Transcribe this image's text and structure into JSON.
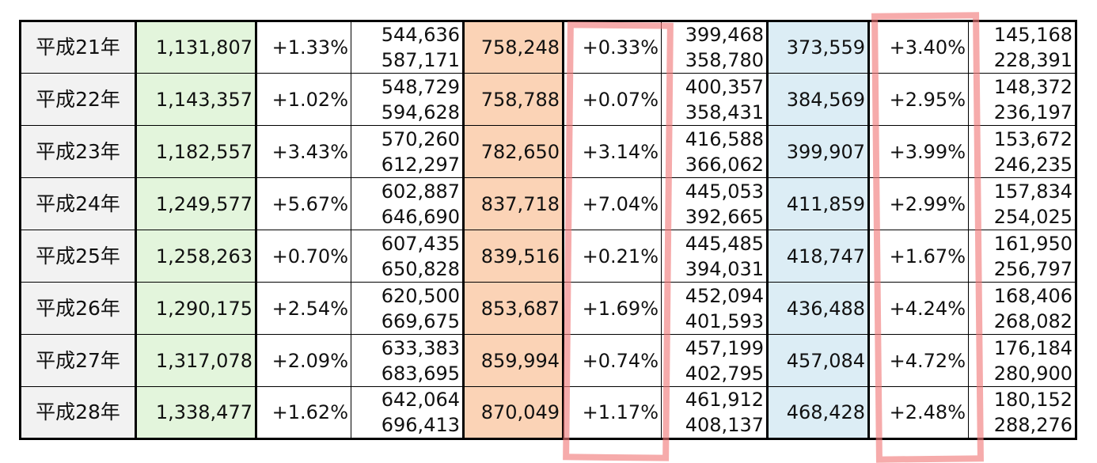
{
  "table": {
    "rows": [
      {
        "year": "平成21年",
        "total": "1,131,807",
        "total_rate": "+1.33%",
        "pair1": [
          "544,636",
          "587,171"
        ],
        "a": "758,248",
        "a_rate": "+0.33%",
        "pair2": [
          "399,468",
          "358,780"
        ],
        "b": "373,559",
        "b_rate": "+3.40%",
        "pair3": [
          "145,168",
          "228,391"
        ]
      },
      {
        "year": "平成22年",
        "total": "1,143,357",
        "total_rate": "+1.02%",
        "pair1": [
          "548,729",
          "594,628"
        ],
        "a": "758,788",
        "a_rate": "+0.07%",
        "pair2": [
          "400,357",
          "358,431"
        ],
        "b": "384,569",
        "b_rate": "+2.95%",
        "pair3": [
          "148,372",
          "236,197"
        ]
      },
      {
        "year": "平成23年",
        "total": "1,182,557",
        "total_rate": "+3.43%",
        "pair1": [
          "570,260",
          "612,297"
        ],
        "a": "782,650",
        "a_rate": "+3.14%",
        "pair2": [
          "416,588",
          "366,062"
        ],
        "b": "399,907",
        "b_rate": "+3.99%",
        "pair3": [
          "153,672",
          "246,235"
        ]
      },
      {
        "year": "平成24年",
        "total": "1,249,577",
        "total_rate": "+5.67%",
        "pair1": [
          "602,887",
          "646,690"
        ],
        "a": "837,718",
        "a_rate": "+7.04%",
        "pair2": [
          "445,053",
          "392,665"
        ],
        "b": "411,859",
        "b_rate": "+2.99%",
        "pair3": [
          "157,834",
          "254,025"
        ]
      },
      {
        "year": "平成25年",
        "total": "1,258,263",
        "total_rate": "+0.70%",
        "pair1": [
          "607,435",
          "650,828"
        ],
        "a": "839,516",
        "a_rate": "+0.21%",
        "pair2": [
          "445,485",
          "394,031"
        ],
        "b": "418,747",
        "b_rate": "+1.67%",
        "pair3": [
          "161,950",
          "256,797"
        ]
      },
      {
        "year": "平成26年",
        "total": "1,290,175",
        "total_rate": "+2.54%",
        "pair1": [
          "620,500",
          "669,675"
        ],
        "a": "853,687",
        "a_rate": "+1.69%",
        "pair2": [
          "452,094",
          "401,593"
        ],
        "b": "436,488",
        "b_rate": "+4.24%",
        "pair3": [
          "168,406",
          "268,082"
        ]
      },
      {
        "year": "平成27年",
        "total": "1,317,078",
        "total_rate": "+2.09%",
        "pair1": [
          "633,383",
          "683,695"
        ],
        "a": "859,994",
        "a_rate": "+0.74%",
        "pair2": [
          "457,199",
          "402,795"
        ],
        "b": "457,084",
        "b_rate": "+4.72%",
        "pair3": [
          "176,184",
          "280,900"
        ]
      },
      {
        "year": "平成28年",
        "total": "1,338,477",
        "total_rate": "+1.62%",
        "pair1": [
          "642,064",
          "696,413"
        ],
        "a": "870,049",
        "a_rate": "+1.17%",
        "pair2": [
          "461,912",
          "408,137"
        ],
        "b": "468,428",
        "b_rate": "+2.48%",
        "pair3": [
          "180,152",
          "288,276"
        ]
      }
    ]
  },
  "colors": {
    "green": "#e3f5dc",
    "orange": "#fbd3b6",
    "blue": "#dcedf5",
    "highlight": "#f07878"
  }
}
